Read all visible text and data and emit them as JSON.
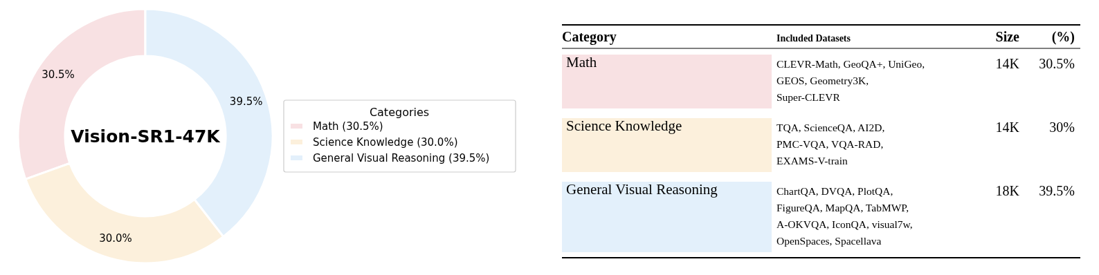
{
  "chart_data": [
    {
      "type": "donut",
      "title": "Vision-SR1-47K",
      "legend_title": "Categories",
      "legend": "right",
      "categories": [
        "Math (30.5%)",
        "Science Knowledge (30.0%)",
        "General Visual Reasoning (39.5%)"
      ],
      "values": [
        30.5,
        30.0,
        39.5
      ],
      "colors": [
        "#f8e1e3",
        "#fcf0dc",
        "#e3f0fb"
      ],
      "value_labels": [
        "30.5%",
        "30.0%",
        "39.5%"
      ]
    },
    {
      "type": "other",
      "colors": [
        "#f8e1e3",
        "#fcf0dc",
        "#e3f0fb"
      ],
      "annotations": [
        "Category",
        "Included Datasets",
        "Size",
        "(%)",
        "Math",
        "CLEVR-Math, GeoQA+, UniGeo,\nGEOS, Geometry3K,\nSuper-CLEVR",
        "14K",
        "30.5%",
        "Science Knowledge",
        "TQA, ScienceQA, AI2D,\nPMC-VQA, VQA-RAD,\nEXAMS-V-train",
        "14K",
        "30%",
        "General Visual Reasoning",
        "ChartQA, DVQA, PlotQA,\nFigureQA, MapQA, TabMWP,\nA-OKVQA, IconQA, visual7w,\nOpenSpaces, Spacellava",
        "18K",
        "39.5%"
      ]
    }
  ]
}
